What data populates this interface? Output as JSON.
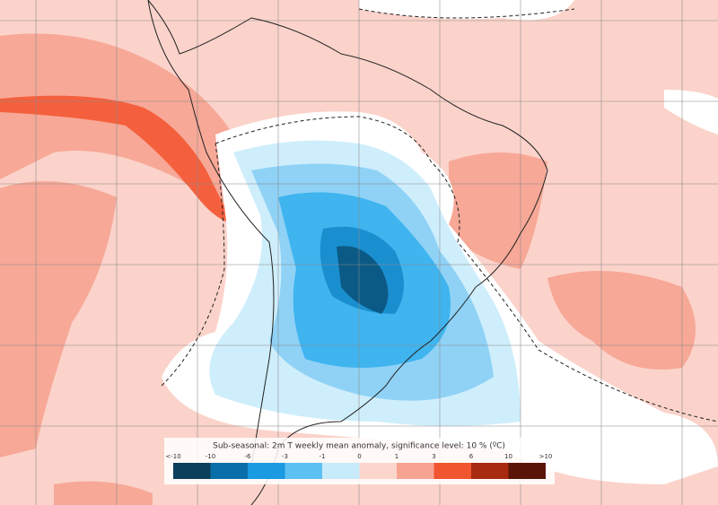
{
  "legend": {
    "title": "Sub-seasonal: 2m T weekly mean anomaly, significance level: 10 % (ºC)",
    "labels": [
      "<-10",
      "-10",
      "-6",
      "-3",
      "-1",
      "0",
      "1",
      "3",
      "6",
      "10",
      ">10"
    ]
  }
}
